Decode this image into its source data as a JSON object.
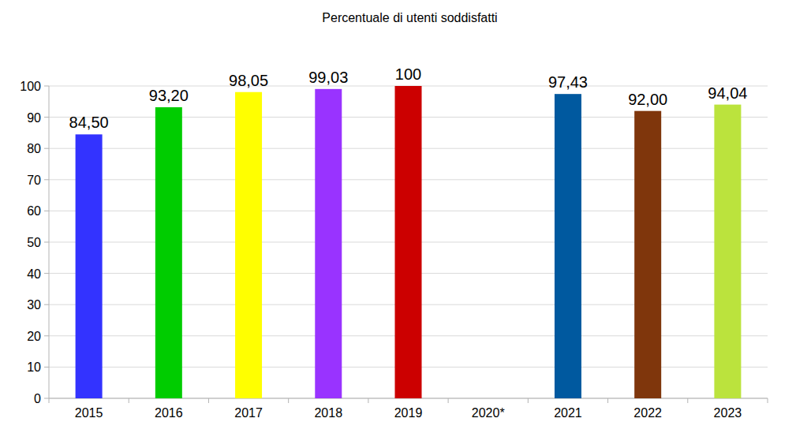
{
  "chart_data": {
    "type": "bar",
    "title": "Percentuale di utenti soddisfatti",
    "categories": [
      "2015",
      "2016",
      "2017",
      "2018",
      "2019",
      "2020*",
      "2021",
      "2022",
      "2023"
    ],
    "values": [
      84.5,
      93.2,
      98.05,
      99.03,
      100,
      null,
      97.43,
      92.0,
      94.04
    ],
    "value_labels": [
      "84,50",
      "93,20",
      "98,05",
      "99,03",
      "100",
      null,
      "97,43",
      "92,00",
      "94,04"
    ],
    "colors": [
      "#3333ff",
      "#00cc00",
      "#ffff00",
      "#9933ff",
      "#cc0000",
      null,
      "#00599f",
      "#7f360c",
      "#bbe33d"
    ],
    "ylim": [
      0,
      100
    ],
    "yticks": [
      0,
      10,
      20,
      30,
      40,
      50,
      60,
      70,
      80,
      90,
      100
    ],
    "grid": true,
    "data_labels": true
  }
}
